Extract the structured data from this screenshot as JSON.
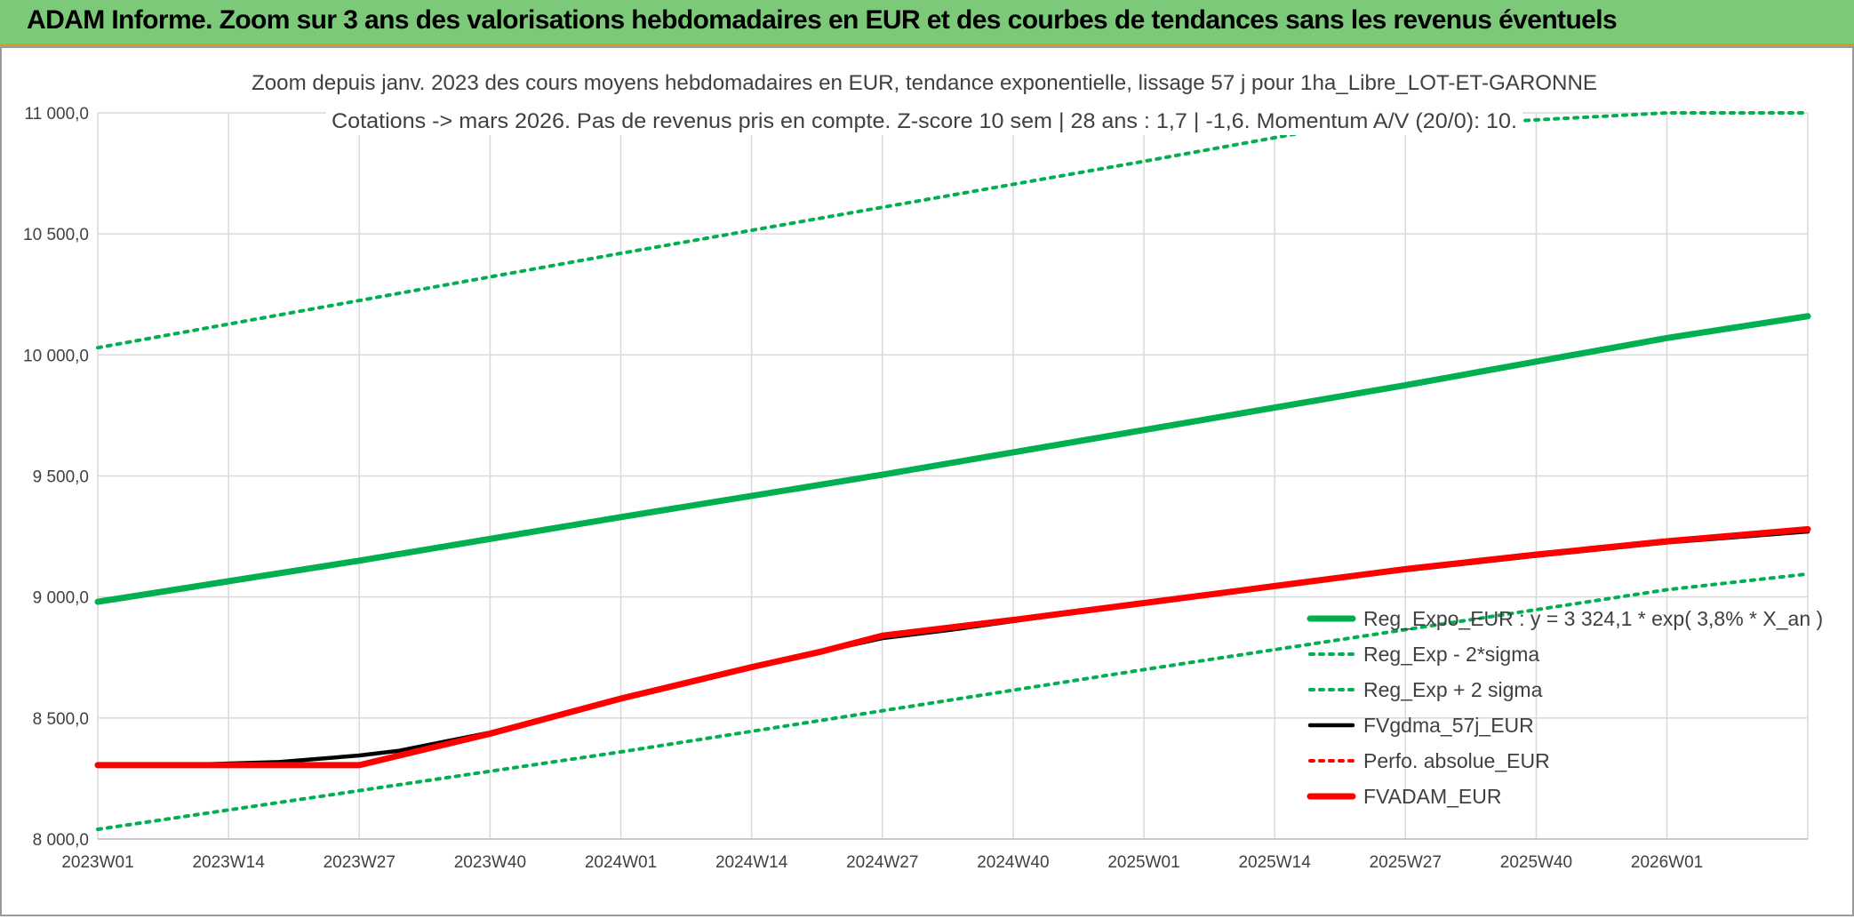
{
  "banner": {
    "title": "ADAM Informe. Zoom sur 3 ans des valorisations hebdomadaires en EUR et des courbes de tendances sans les revenus éventuels"
  },
  "chart_data": {
    "type": "line",
    "title_line1": "Zoom depuis janv. 2023 des cours moyens hebdomadaires en EUR, tendance exponentielle, lissage 57 j pour 1ha_Libre_LOT-ET-GARONNE",
    "title_line2": "Cotations -> mars 2026. Pas de revenus pris en compte. Z-score 10 sem | 28 ans : 1,7 | -1,6. Momentum A/V (20/0): 10.",
    "xlabel": "",
    "ylabel": "",
    "x_ticks": [
      {
        "label": "2023W01",
        "week": 0
      },
      {
        "label": "2023W14",
        "week": 13
      },
      {
        "label": "2023W27",
        "week": 26
      },
      {
        "label": "2023W40",
        "week": 39
      },
      {
        "label": "2024W01",
        "week": 52
      },
      {
        "label": "2024W14",
        "week": 65
      },
      {
        "label": "2024W27",
        "week": 78
      },
      {
        "label": "2024W40",
        "week": 91
      },
      {
        "label": "2025W01",
        "week": 104
      },
      {
        "label": "2025W14",
        "week": 117
      },
      {
        "label": "2025W27",
        "week": 130
      },
      {
        "label": "2025W40",
        "week": 143
      },
      {
        "label": "2026W01",
        "week": 156
      }
    ],
    "y_ticks": [
      "8 000,0",
      "8 500,0",
      "9 000,0",
      "9 500,0",
      "10 000,0",
      "10 500,0",
      "11 000,0"
    ],
    "ylim": [
      8000,
      11000
    ],
    "y_tick_step": 500,
    "xlim": [
      0,
      170
    ],
    "grid": true,
    "legend_position": "right",
    "series": [
      {
        "id": "reg",
        "name": "Reg_Expo_EUR : y = 3 324,1 * exp( 3,8% *  X_an )",
        "color": "#00b050",
        "style": "solid-thick",
        "points": [
          [
            0,
            8980
          ],
          [
            26,
            9150
          ],
          [
            52,
            9330
          ],
          [
            78,
            9505
          ],
          [
            104,
            9690
          ],
          [
            130,
            9875
          ],
          [
            156,
            10070
          ],
          [
            170,
            10160
          ]
        ]
      },
      {
        "id": "lower",
        "name": "Reg_Exp - 2*sigma",
        "color": "#00b050",
        "style": "dotted",
        "points": [
          [
            0,
            8040
          ],
          [
            52,
            8360
          ],
          [
            104,
            8700
          ],
          [
            156,
            9030
          ],
          [
            170,
            9095
          ]
        ]
      },
      {
        "id": "upper",
        "name": "Reg_Exp + 2 sigma",
        "color": "#00b050",
        "style": "dotted",
        "points": [
          [
            0,
            10030
          ],
          [
            52,
            10420
          ],
          [
            104,
            10800
          ],
          [
            120,
            10920
          ],
          [
            156,
            11000
          ],
          [
            170,
            11000
          ]
        ]
      },
      {
        "id": "fvgdma",
        "name": "FVgdma_57j_EUR",
        "color": "#000000",
        "style": "solid",
        "points": [
          [
            0,
            8305
          ],
          [
            10,
            8308
          ],
          [
            18,
            8318
          ],
          [
            26,
            8345
          ],
          [
            30,
            8365
          ],
          [
            39,
            8440
          ],
          [
            52,
            8580
          ],
          [
            65,
            8710
          ],
          [
            78,
            8830
          ],
          [
            85,
            8865
          ],
          [
            91,
            8900
          ],
          [
            104,
            8975
          ],
          [
            117,
            9045
          ],
          [
            130,
            9110
          ],
          [
            143,
            9170
          ],
          [
            156,
            9225
          ],
          [
            170,
            9270
          ]
        ]
      },
      {
        "id": "perfo",
        "name": "Perfo. absolue_EUR",
        "color": "#ff0000",
        "style": "dotted",
        "points": [
          [
            0,
            8305
          ],
          [
            26,
            8305
          ],
          [
            30,
            8345
          ],
          [
            39,
            8435
          ],
          [
            52,
            8580
          ],
          [
            65,
            8710
          ],
          [
            78,
            8840
          ],
          [
            91,
            8905
          ],
          [
            104,
            8975
          ],
          [
            117,
            9045
          ],
          [
            130,
            9115
          ],
          [
            143,
            9175
          ],
          [
            156,
            9230
          ],
          [
            170,
            9280
          ]
        ]
      },
      {
        "id": "fvadam",
        "name": "FVADAM_EUR",
        "color": "#ff0000",
        "style": "solid-thick",
        "points": [
          [
            0,
            8305
          ],
          [
            13,
            8305
          ],
          [
            26,
            8305
          ],
          [
            30,
            8345
          ],
          [
            39,
            8435
          ],
          [
            52,
            8580
          ],
          [
            65,
            8710
          ],
          [
            72,
            8775
          ],
          [
            78,
            8840
          ],
          [
            91,
            8905
          ],
          [
            104,
            8975
          ],
          [
            117,
            9045
          ],
          [
            130,
            9115
          ],
          [
            143,
            9175
          ],
          [
            156,
            9230
          ],
          [
            170,
            9280
          ]
        ]
      }
    ]
  }
}
